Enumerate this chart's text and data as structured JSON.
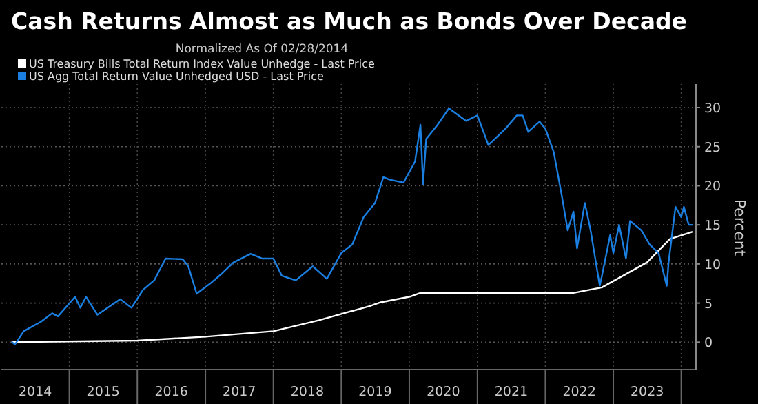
{
  "chart_data": {
    "type": "line",
    "title": "Cash Returns Almost as Much as Bonds Over Decade",
    "subtitle": "Normalized As Of 02/28/2014",
    "ylabel": "Percent",
    "legend": "top left",
    "grid": true,
    "xlim": [
      "2014-01-01",
      "2024-03-20"
    ],
    "xticks": [
      {
        "value": "2014-07-02",
        "label": "2014"
      },
      {
        "value": "2015-01-01",
        "label": null
      },
      {
        "value": "2015-07-02",
        "label": "2015"
      },
      {
        "value": "2016-01-01",
        "label": null
      },
      {
        "value": "2016-07-02",
        "label": "2016"
      },
      {
        "value": "2017-01-01",
        "label": null
      },
      {
        "value": "2017-07-02",
        "label": "2017"
      },
      {
        "value": "2018-01-01",
        "label": null
      },
      {
        "value": "2018-07-02",
        "label": "2018"
      },
      {
        "value": "2019-01-01",
        "label": null
      },
      {
        "value": "2019-07-02",
        "label": "2019"
      },
      {
        "value": "2020-01-01",
        "label": null
      },
      {
        "value": "2020-07-02",
        "label": "2020"
      },
      {
        "value": "2021-01-01",
        "label": null
      },
      {
        "value": "2021-07-02",
        "label": "2021"
      },
      {
        "value": "2022-01-01",
        "label": null
      },
      {
        "value": "2022-07-02",
        "label": "2022"
      },
      {
        "value": "2023-01-01",
        "label": null
      },
      {
        "value": "2023-07-02",
        "label": "2023"
      },
      {
        "value": "2024-01-01",
        "label": null
      }
    ],
    "ylim": [
      -3.5,
      33
    ],
    "yticks": [
      0,
      5,
      10,
      15,
      20,
      25,
      30
    ],
    "series": [
      {
        "name": "US Treasury Bills Total Return Index Value Unhedge - Last Price",
        "color": "#ffffff",
        "x": [
          "2014-02-28",
          "2016-01-01",
          "2017-01-01",
          "2018-01-01",
          "2018-09-01",
          "2019-06-01",
          "2019-08-01",
          "2020-01-01",
          "2020-03-01",
          "2022-06-01",
          "2022-11-01",
          "2023-07-01",
          "2023-11-01",
          "2024-02-28"
        ],
        "values": [
          0,
          0.2,
          0.7,
          1.4,
          2.8,
          4.6,
          5.1,
          5.8,
          6.3,
          6.3,
          7,
          10.2,
          13.2,
          14.1
        ]
      },
      {
        "name": "US Agg Total Return Value Unhedged USD - Last Price",
        "color": "#1a7fe0",
        "x": [
          "2014-02-28",
          "2014-03-15",
          "2014-05-01",
          "2014-08-01",
          "2014-10-01",
          "2014-11-01",
          "2015-02-01",
          "2015-03-01",
          "2015-04-01",
          "2015-06-01",
          "2015-10-01",
          "2015-12-01",
          "2016-02-01",
          "2016-04-01",
          "2016-06-01",
          "2016-09-01",
          "2016-10-01",
          "2016-11-15",
          "2017-02-01",
          "2017-04-01",
          "2017-06-01",
          "2017-09-01",
          "2017-11-01",
          "2018-01-01",
          "2018-02-15",
          "2018-05-01",
          "2018-08-01",
          "2018-10-15",
          "2019-01-01",
          "2019-03-01",
          "2019-05-01",
          "2019-07-01",
          "2019-08-15",
          "2019-09-15",
          "2019-12-01",
          "2020-02-01",
          "2020-03-01",
          "2020-03-15",
          "2020-04-01",
          "2020-06-01",
          "2020-08-01",
          "2020-11-01",
          "2021-01-01",
          "2021-03-01",
          "2021-06-01",
          "2021-08-01",
          "2021-09-01",
          "2021-10-01",
          "2021-12-01",
          "2022-01-01",
          "2022-02-15",
          "2022-04-01",
          "2022-05-01",
          "2022-06-01",
          "2022-06-20",
          "2022-08-01",
          "2022-09-01",
          "2022-10-20",
          "2022-11-01",
          "2022-12-15",
          "2023-01-01",
          "2023-02-01",
          "2023-03-10",
          "2023-04-01",
          "2023-06-01",
          "2023-07-15",
          "2023-09-01",
          "2023-10-15",
          "2023-10-25",
          "2023-12-01",
          "2024-01-01",
          "2024-01-15",
          "2024-02-10",
          "2024-02-28"
        ],
        "values": [
          0,
          -0.3,
          1.4,
          2.6,
          3.7,
          3.3,
          5.8,
          4.4,
          5.8,
          3.5,
          5.5,
          4.4,
          6.7,
          7.9,
          10.7,
          10.6,
          9.7,
          6.2,
          7.6,
          8.8,
          10.2,
          11.3,
          10.7,
          10.7,
          8.5,
          7.9,
          9.7,
          8.1,
          11.4,
          12.5,
          16,
          17.8,
          21.1,
          20.8,
          20.4,
          23.1,
          27.8,
          20.2,
          26,
          27.8,
          29.9,
          28.3,
          29,
          25.2,
          27.3,
          29,
          29,
          26.9,
          28.2,
          27.3,
          24.3,
          18.5,
          14.3,
          16.7,
          12,
          17.8,
          14.3,
          7.2,
          8.5,
          13.7,
          11.4,
          15,
          10.7,
          15.5,
          14.3,
          12.5,
          11.4,
          7.2,
          10.2,
          17.3,
          16,
          17.3,
          15,
          15
        ]
      }
    ]
  }
}
